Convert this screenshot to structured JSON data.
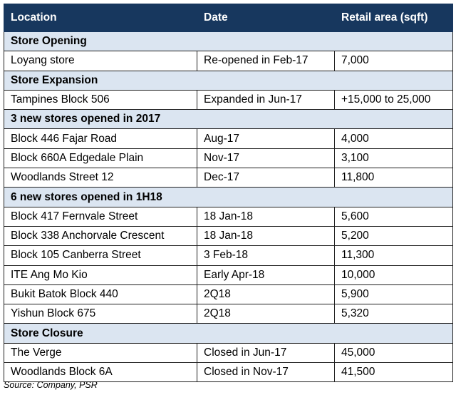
{
  "headers": [
    "Location",
    "Date",
    "Retail area (sqft)"
  ],
  "groups": [
    {
      "title": "Store Opening",
      "rows": [
        [
          "Loyang store",
          "Re-opened in Feb-17",
          "7,000"
        ]
      ]
    },
    {
      "title": "Store Expansion",
      "rows": [
        [
          "Tampines Block 506",
          "Expanded in Jun-17",
          "+15,000 to 25,000"
        ]
      ]
    },
    {
      "title": "3 new stores opened in 2017",
      "rows": [
        [
          "Block 446 Fajar Road",
          "Aug-17",
          "4,000"
        ],
        [
          "Block 660A Edgedale Plain",
          "Nov-17",
          "3,100"
        ],
        [
          "Woodlands Street 12",
          "Dec-17",
          "11,800"
        ]
      ]
    },
    {
      "title": "6 new stores opened in 1H18",
      "rows": [
        [
          "Block 417 Fernvale Street",
          "18 Jan-18",
          "5,600"
        ],
        [
          "Block 338 Anchorvale Crescent",
          "18 Jan-18",
          "5,200"
        ],
        [
          "Block 105 Canberra Street",
          "3 Feb-18",
          "11,300"
        ],
        [
          "ITE Ang Mo Kio",
          "Early Apr-18",
          "10,000"
        ],
        [
          "Bukit Batok Block 440",
          "2Q18",
          "5,900"
        ],
        [
          "Yishun Block 675",
          "2Q18",
          "5,320"
        ]
      ]
    },
    {
      "title": "Store Closure",
      "rows": [
        [
          "The Verge",
          "Closed in Jun-17",
          "45,000"
        ],
        [
          "Woodlands Block 6A",
          "Closed in Nov-17",
          "41,500"
        ]
      ]
    }
  ],
  "source": "Source: Company, PSR",
  "colors": {
    "header_bg": "#17375e",
    "header_text": "#ffffff",
    "section_bg": "#dbe5f1"
  }
}
